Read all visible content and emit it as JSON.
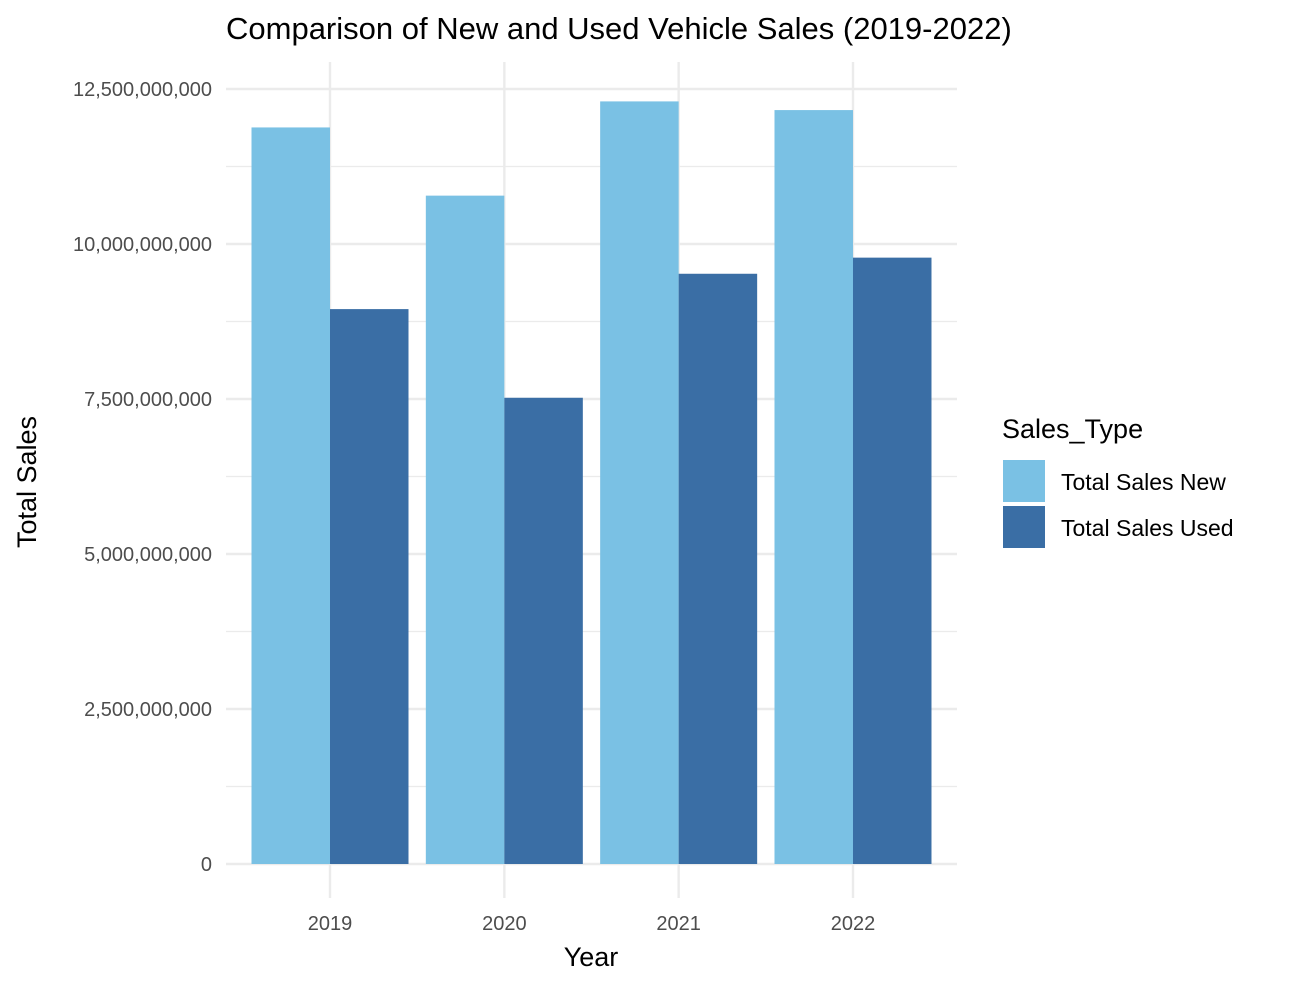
{
  "chart_data": {
    "type": "bar",
    "title": "Comparison of New and Used Vehicle Sales (2019-2022)",
    "xlabel": "Year",
    "ylabel": "Total Sales",
    "categories": [
      "2019",
      "2020",
      "2021",
      "2022"
    ],
    "series": [
      {
        "name": "Total Sales New",
        "color": "#7AC1E4",
        "values": [
          11880000000,
          10780000000,
          12300000000,
          12160000000
        ]
      },
      {
        "name": "Total Sales Used",
        "color": "#3A6EA5",
        "values": [
          8950000000,
          7520000000,
          9520000000,
          9780000000
        ]
      }
    ],
    "ylim": [
      0,
      12500000000
    ],
    "yticks": [
      0,
      2500000000,
      5000000000,
      7500000000,
      10000000000,
      12500000000
    ],
    "ytick_labels": [
      "0",
      "2,500,000,000",
      "5,000,000,000",
      "7,500,000,000",
      "10,000,000,000",
      "12,500,000,000"
    ],
    "grid": true,
    "legend": {
      "title": "Sales_Type",
      "position": "right"
    }
  }
}
